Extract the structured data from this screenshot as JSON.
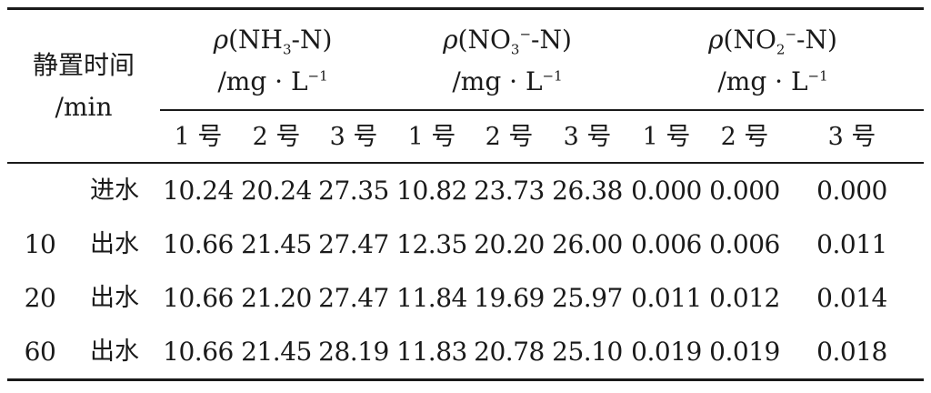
{
  "table": {
    "header": {
      "time_label": "静置时间",
      "time_unit": "/min",
      "groups": [
        {
          "rho": "ρ",
          "open": "(NH",
          "sub": "3",
          "sup": "",
          "close": "-N)",
          "unit_pre": "/mg · L",
          "unit_sup": "−1"
        },
        {
          "rho": "ρ",
          "open": "(NO",
          "sub": "3",
          "sup": "−",
          "close": "-N)",
          "unit_pre": "/mg · L",
          "unit_sup": "−1"
        },
        {
          "rho": "ρ",
          "open": "(NO",
          "sub": "2",
          "sup": "−",
          "close": "-N)",
          "unit_pre": "/mg · L",
          "unit_sup": "−1"
        }
      ],
      "subcols": [
        "1 号",
        "2 号",
        "3 号",
        "1 号",
        "2 号",
        "3 号",
        "1 号",
        "2 号",
        "3 号"
      ]
    },
    "rows": [
      {
        "time": "",
        "type": "进水",
        "values": [
          "10.24",
          "20.24",
          "27.35",
          "10.82",
          "23.73",
          "26.38",
          "0.000",
          "0.000",
          "0.000"
        ]
      },
      {
        "time": "10",
        "type": "出水",
        "values": [
          "10.66",
          "21.45",
          "27.47",
          "12.35",
          "20.20",
          "26.00",
          "0.006",
          "0.006",
          "0.011"
        ]
      },
      {
        "time": "20",
        "type": "出水",
        "values": [
          "10.66",
          "21.20",
          "27.47",
          "11.84",
          "19.69",
          "25.97",
          "0.011",
          "0.012",
          "0.014"
        ]
      },
      {
        "time": "60",
        "type": "出水",
        "values": [
          "10.66",
          "21.45",
          "28.19",
          "11.83",
          "20.78",
          "25.10",
          "0.019",
          "0.019",
          "0.018"
        ]
      }
    ]
  }
}
